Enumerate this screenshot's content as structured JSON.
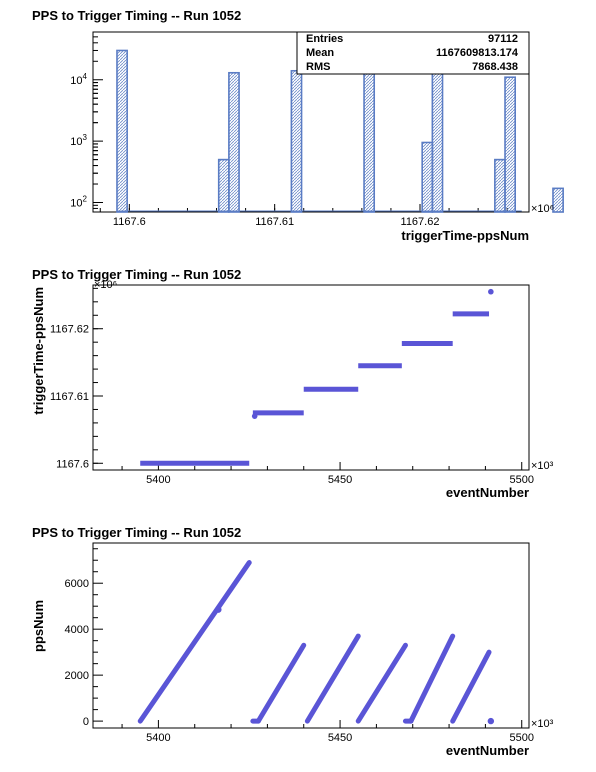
{
  "colors": {
    "marker": "#5a55d6",
    "hist": "#5a7cc4",
    "frame": "#000000"
  },
  "chart_data": [
    {
      "type": "bar",
      "title": "PPS to Trigger Timing -- Run 1052",
      "xlabel": "triggerTime-ppsNum",
      "ylabel": "",
      "x_multiplier": "×10⁶",
      "xlim": [
        1167.5975,
        1167.6275
      ],
      "ylim": [
        70,
        60000
      ],
      "log_y": true,
      "fill": "hatched",
      "x_ticks": [
        1167.6,
        1167.61,
        1167.62
      ],
      "y_tick_labels": [
        {
          "value": 100,
          "base": "10",
          "exp": "2"
        },
        {
          "value": 1000,
          "base": "10",
          "exp": "3"
        },
        {
          "value": 10000,
          "base": "10",
          "exp": "4"
        }
      ],
      "bins": [
        {
          "x": 1167.5995,
          "count": 30000
        },
        {
          "x": 1167.6065,
          "count": 500
        },
        {
          "x": 1167.6072,
          "count": 13000
        },
        {
          "x": 1167.6115,
          "count": 14000
        },
        {
          "x": 1167.6165,
          "count": 12500
        },
        {
          "x": 1167.6205,
          "count": 950
        },
        {
          "x": 1167.6212,
          "count": 13000
        },
        {
          "x": 1167.6255,
          "count": 500
        },
        {
          "x": 1167.6262,
          "count": 11000
        },
        {
          "x": 1167.6295,
          "count": 170
        }
      ],
      "stats": {
        "rows": [
          {
            "label": "Entries",
            "value": "97112"
          },
          {
            "label": "Mean",
            "value": "1167609813.174"
          },
          {
            "label": "RMS",
            "value": "7868.438"
          }
        ]
      }
    },
    {
      "type": "scatter",
      "title": "PPS to Trigger Timing -- Run 1052",
      "xlabel": "eventNumber",
      "ylabel": "triggerTime-ppsNum",
      "x_multiplier": "×10³",
      "y_multiplier": "×10⁶",
      "xlim": [
        5382,
        5502
      ],
      "ylim": [
        1167.599,
        1167.6265
      ],
      "x_ticks": [
        5400,
        5450,
        5500
      ],
      "y_ticks": [
        1167.6,
        1167.61,
        1167.62
      ],
      "segments": [
        {
          "x": [
            5395,
            5425
          ],
          "y": 1167.6
        },
        {
          "x": [
            5426,
            5440
          ],
          "y": 1167.6075
        },
        {
          "x": [
            5440,
            5455
          ],
          "y": 1167.611
        },
        {
          "x": [
            5455,
            5467
          ],
          "y": 1167.6145
        },
        {
          "x": [
            5467,
            5481
          ],
          "y": 1167.6178
        },
        {
          "x": [
            5481,
            5491
          ],
          "y": 1167.6222
        }
      ],
      "points": [
        {
          "x": 5426.5,
          "y": 1167.607
        },
        {
          "x": 5491.5,
          "y": 1167.6255
        }
      ]
    },
    {
      "type": "scatter",
      "title": "PPS to Trigger Timing -- Run 1052",
      "xlabel": "eventNumber",
      "ylabel": "ppsNum",
      "x_multiplier": "×10³",
      "xlim": [
        5382,
        5502
      ],
      "ylim": [
        -300,
        7750
      ],
      "x_ticks": [
        5400,
        5450,
        5500
      ],
      "y_ticks": [
        0,
        2000,
        4000,
        6000
      ],
      "segments": [
        {
          "x0": 5395,
          "y0": 0,
          "x1": 5425,
          "y1": 6900
        },
        {
          "x0": 5426,
          "y0": 0,
          "x1": 5427.5,
          "y1": 0
        },
        {
          "x0": 5427.5,
          "y0": 0,
          "x1": 5440,
          "y1": 3300
        },
        {
          "x0": 5441,
          "y0": 0,
          "x1": 5455,
          "y1": 3700
        },
        {
          "x0": 5455,
          "y0": 0,
          "x1": 5468,
          "y1": 3300
        },
        {
          "x0": 5468,
          "y0": 0,
          "x1": 5469.5,
          "y1": 0
        },
        {
          "x0": 5469.5,
          "y0": 0,
          "x1": 5481,
          "y1": 3700
        },
        {
          "x0": 5481,
          "y0": 0,
          "x1": 5491,
          "y1": 3000
        }
      ],
      "points": [
        {
          "x": 5416.5,
          "y": 4850
        },
        {
          "x": 5491.5,
          "y": 0
        }
      ]
    }
  ]
}
